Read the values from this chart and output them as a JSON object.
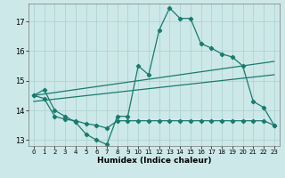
{
  "xlabel": "Humidex (Indice chaleur)",
  "x_ticks": [
    0,
    1,
    2,
    3,
    4,
    5,
    6,
    7,
    8,
    9,
    10,
    11,
    12,
    13,
    14,
    15,
    16,
    17,
    18,
    19,
    20,
    21,
    22,
    23
  ],
  "ylim": [
    12.8,
    17.6
  ],
  "y_ticks": [
    13,
    14,
    15,
    16,
    17
  ],
  "background_color": "#cde8e8",
  "grid_color": "#aacfcf",
  "line_color": "#1a7a6e",
  "curve1_x": [
    0,
    1,
    2,
    3,
    4,
    5,
    6,
    7,
    8,
    9,
    10,
    11,
    12,
    13,
    14,
    15,
    16,
    17,
    18,
    19,
    20,
    21,
    22,
    23
  ],
  "curve1_y": [
    14.5,
    14.7,
    14.0,
    13.8,
    13.6,
    13.2,
    13.0,
    12.85,
    13.8,
    13.8,
    15.5,
    15.2,
    16.7,
    17.45,
    17.1,
    17.1,
    16.25,
    16.1,
    15.9,
    15.8,
    15.5,
    14.3,
    14.1,
    13.5
  ],
  "curve2_x": [
    0,
    23
  ],
  "curve2_y": [
    14.5,
    15.65
  ],
  "curve3_x": [
    0,
    23
  ],
  "curve3_y": [
    14.3,
    15.2
  ],
  "curve4_x": [
    0,
    1,
    2,
    3,
    4,
    5,
    6,
    7,
    8,
    9,
    10,
    11,
    12,
    13,
    14,
    15,
    16,
    17,
    18,
    19,
    20,
    21,
    22,
    23
  ],
  "curve4_y": [
    14.5,
    14.4,
    13.8,
    13.7,
    13.65,
    13.55,
    13.5,
    13.4,
    13.65,
    13.65,
    13.65,
    13.65,
    13.65,
    13.65,
    13.65,
    13.65,
    13.65,
    13.65,
    13.65,
    13.65,
    13.65,
    13.65,
    13.65,
    13.5
  ]
}
